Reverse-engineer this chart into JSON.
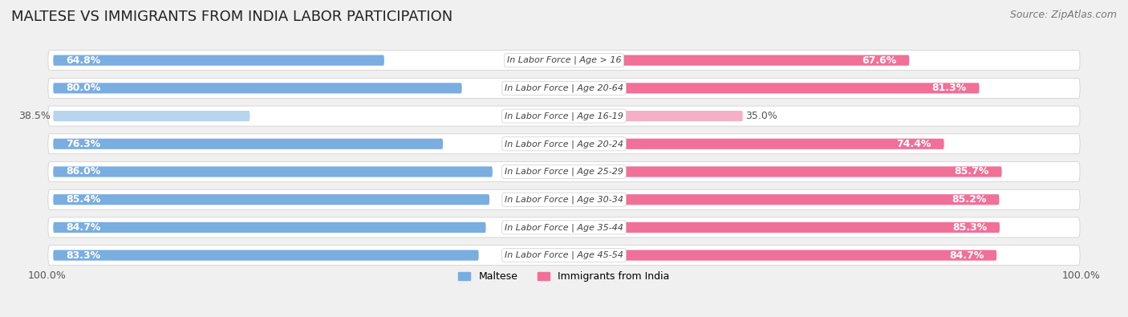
{
  "title": "MALTESE VS IMMIGRANTS FROM INDIA LABOR PARTICIPATION",
  "source": "Source: ZipAtlas.com",
  "categories": [
    "In Labor Force | Age > 16",
    "In Labor Force | Age 20-64",
    "In Labor Force | Age 16-19",
    "In Labor Force | Age 20-24",
    "In Labor Force | Age 25-29",
    "In Labor Force | Age 30-34",
    "In Labor Force | Age 35-44",
    "In Labor Force | Age 45-54"
  ],
  "maltese_values": [
    64.8,
    80.0,
    38.5,
    76.3,
    86.0,
    85.4,
    84.7,
    83.3
  ],
  "india_values": [
    67.6,
    81.3,
    35.0,
    74.4,
    85.7,
    85.2,
    85.3,
    84.7
  ],
  "maltese_color_strong": "#7aade0",
  "maltese_color_light": "#b8d4ee",
  "india_color_strong": "#f07098",
  "india_color_light": "#f5b0c8",
  "bg_color": "#f0f0f0",
  "row_bg_color_odd": "#e8e8e8",
  "row_bg_color_even": "#f0f0f0",
  "title_fontsize": 13,
  "source_fontsize": 9,
  "bar_label_fontsize": 9,
  "category_fontsize": 8,
  "legend_fontsize": 9,
  "footer_fontsize": 9,
  "max_value": 100.0
}
